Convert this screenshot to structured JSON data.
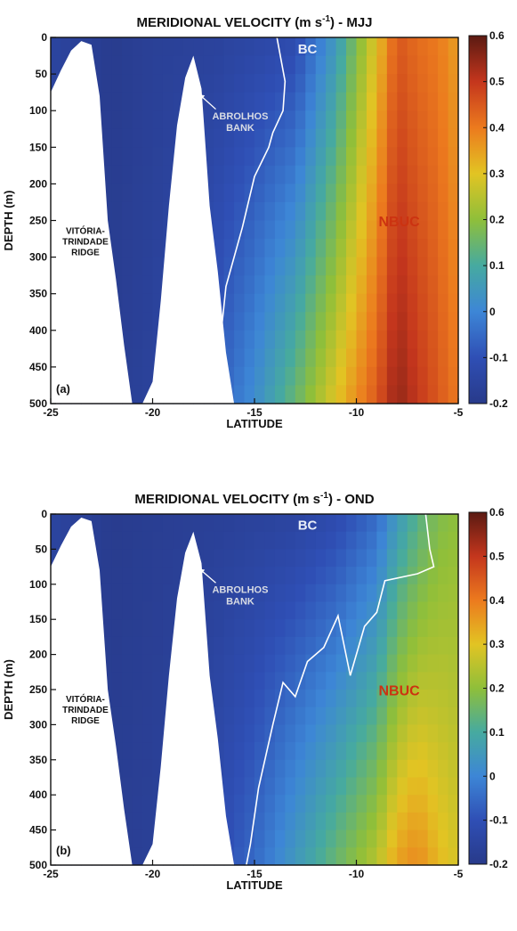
{
  "chart_data": [
    {
      "type": "heatmap",
      "title_main": "MERIDIONAL VELOCITY (m s",
      "title_sup": "-1",
      "title_end": ") - MJJ",
      "xlabel": "LATITUDE",
      "ylabel": "DEPTH (m)",
      "panel_label": "(a)",
      "xlim": [
        -25,
        -5
      ],
      "ylim": [
        0,
        500
      ],
      "x_ticks": [
        "-25",
        "-20",
        "-15",
        "-10",
        "-5"
      ],
      "y_ticks": [
        "0",
        "50",
        "100",
        "150",
        "200",
        "250",
        "300",
        "350",
        "400",
        "450",
        "500"
      ],
      "colorbar_ticks": [
        "0.6",
        "0.5",
        "0.4",
        "0.3",
        "0.2",
        "0.1",
        "0",
        "-0.1",
        "-0.2"
      ],
      "clim": [
        -0.2,
        0.6
      ],
      "annotations": [
        {
          "lines": [
            "BC"
          ],
          "color": "#e8eef8"
        },
        {
          "lines": [
            "ABROLHOS",
            "BANK"
          ],
          "color": "#d9dce4"
        },
        {
          "lines": [
            "NBUC"
          ],
          "color": "#cc3311"
        },
        {
          "lines": [
            "VITÓRIA-",
            "TRINDADE",
            "RIDGE"
          ],
          "color": "#111111"
        }
      ],
      "topography_depth": [
        {
          "lat": -25.0,
          "depth": 75
        },
        {
          "lat": -24.5,
          "depth": 45
        },
        {
          "lat": -24.0,
          "depth": 18
        },
        {
          "lat": -23.5,
          "depth": 5
        },
        {
          "lat": -23.0,
          "depth": 10
        },
        {
          "lat": -22.6,
          "depth": 80
        },
        {
          "lat": -22.2,
          "depth": 250
        },
        {
          "lat": -21.8,
          "depth": 330
        },
        {
          "lat": -21.4,
          "depth": 420
        },
        {
          "lat": -21.0,
          "depth": 500
        },
        {
          "lat": -20.5,
          "depth": 500
        },
        {
          "lat": -20.0,
          "depth": 470
        },
        {
          "lat": -19.6,
          "depth": 360
        },
        {
          "lat": -19.2,
          "depth": 230
        },
        {
          "lat": -18.8,
          "depth": 120
        },
        {
          "lat": -18.4,
          "depth": 55
        },
        {
          "lat": -18.0,
          "depth": 25
        },
        {
          "lat": -17.6,
          "depth": 70
        },
        {
          "lat": -17.2,
          "depth": 230
        },
        {
          "lat": -16.8,
          "depth": 320
        },
        {
          "lat": -16.4,
          "depth": 430
        },
        {
          "lat": -16.0,
          "depth": 500
        }
      ],
      "velocity_profile": [
        {
          "lat": -25,
          "surface": -0.15,
          "deep": -0.15
        },
        {
          "lat": -22,
          "surface": -0.19,
          "deep": -0.18
        },
        {
          "lat": -20,
          "surface": -0.17,
          "deep": -0.16
        },
        {
          "lat": -17,
          "surface": -0.16,
          "deep": -0.08
        },
        {
          "lat": -15,
          "surface": -0.14,
          "deep": 0.02
        },
        {
          "lat": -13,
          "surface": -0.12,
          "deep": 0.15
        },
        {
          "lat": -11,
          "surface": 0.05,
          "deep": 0.3
        },
        {
          "lat": -9,
          "surface": 0.3,
          "deep": 0.45
        },
        {
          "lat": -8,
          "surface": 0.45,
          "deep": 0.55
        },
        {
          "lat": -7,
          "surface": 0.42,
          "deep": 0.5
        },
        {
          "lat": -6,
          "surface": 0.4,
          "deep": 0.45
        },
        {
          "lat": -5,
          "surface": 0.35,
          "deep": 0.4
        }
      ],
      "zero_contour": [
        {
          "lat": -13.9,
          "depth": 0
        },
        {
          "lat": -13.5,
          "depth": 60
        },
        {
          "lat": -13.6,
          "depth": 100
        },
        {
          "lat": -14.1,
          "depth": 130
        },
        {
          "lat": -14.3,
          "depth": 150
        },
        {
          "lat": -15.0,
          "depth": 190
        },
        {
          "lat": -15.6,
          "depth": 260
        },
        {
          "lat": -16.4,
          "depth": 340
        },
        {
          "lat": -16.7,
          "depth": 420
        },
        {
          "lat": -16.2,
          "depth": 500
        }
      ]
    },
    {
      "type": "heatmap",
      "title_main": "MERIDIONAL VELOCITY (m s",
      "title_sup": "-1",
      "title_end": ") - OND",
      "xlabel": "LATITUDE",
      "ylabel": "DEPTH (m)",
      "panel_label": "(b)",
      "xlim": [
        -25,
        -5
      ],
      "ylim": [
        0,
        500
      ],
      "x_ticks": [
        "-25",
        "-20",
        "-15",
        "-10",
        "-5"
      ],
      "y_ticks": [
        "0",
        "50",
        "100",
        "150",
        "200",
        "250",
        "300",
        "350",
        "400",
        "450",
        "500"
      ],
      "colorbar_ticks": [
        "0.6",
        "0.5",
        "0.4",
        "0.3",
        "0.2",
        "0.1",
        "0",
        "-0.1",
        "-0.2"
      ],
      "clim": [
        -0.2,
        0.6
      ],
      "annotations": [
        {
          "lines": [
            "BC"
          ],
          "color": "#e8eef8"
        },
        {
          "lines": [
            "ABROLHOS",
            "BANK"
          ],
          "color": "#d9dce4"
        },
        {
          "lines": [
            "NBUC"
          ],
          "color": "#cc3311"
        },
        {
          "lines": [
            "VITÓRIA-",
            "TRINDADE",
            "RIDGE"
          ],
          "color": "#111111"
        }
      ],
      "topography_depth": [
        {
          "lat": -25.0,
          "depth": 75
        },
        {
          "lat": -24.5,
          "depth": 45
        },
        {
          "lat": -24.0,
          "depth": 18
        },
        {
          "lat": -23.5,
          "depth": 5
        },
        {
          "lat": -23.0,
          "depth": 10
        },
        {
          "lat": -22.6,
          "depth": 80
        },
        {
          "lat": -22.2,
          "depth": 250
        },
        {
          "lat": -21.8,
          "depth": 330
        },
        {
          "lat": -21.4,
          "depth": 420
        },
        {
          "lat": -21.0,
          "depth": 500
        },
        {
          "lat": -20.5,
          "depth": 500
        },
        {
          "lat": -20.0,
          "depth": 470
        },
        {
          "lat": -19.6,
          "depth": 360
        },
        {
          "lat": -19.2,
          "depth": 230
        },
        {
          "lat": -18.8,
          "depth": 120
        },
        {
          "lat": -18.4,
          "depth": 55
        },
        {
          "lat": -18.0,
          "depth": 25
        },
        {
          "lat": -17.6,
          "depth": 70
        },
        {
          "lat": -17.2,
          "depth": 230
        },
        {
          "lat": -16.8,
          "depth": 320
        },
        {
          "lat": -16.4,
          "depth": 430
        },
        {
          "lat": -16.0,
          "depth": 500
        }
      ],
      "velocity_profile": [
        {
          "lat": -25,
          "surface": -0.15,
          "deep": -0.15
        },
        {
          "lat": -22,
          "surface": -0.19,
          "deep": -0.18
        },
        {
          "lat": -20,
          "surface": -0.18,
          "deep": -0.17
        },
        {
          "lat": -17,
          "surface": -0.17,
          "deep": -0.12
        },
        {
          "lat": -15,
          "surface": -0.16,
          "deep": -0.05
        },
        {
          "lat": -13,
          "surface": -0.15,
          "deep": 0.05
        },
        {
          "lat": -11,
          "surface": -0.12,
          "deep": 0.15
        },
        {
          "lat": -9,
          "surface": -0.05,
          "deep": 0.25
        },
        {
          "lat": -8,
          "surface": 0.05,
          "deep": 0.35
        },
        {
          "lat": -7,
          "surface": 0.12,
          "deep": 0.38
        },
        {
          "lat": -6,
          "surface": 0.18,
          "deep": 0.32
        },
        {
          "lat": -5,
          "surface": 0.2,
          "deep": 0.28
        }
      ],
      "zero_contour": [
        {
          "lat": -6.6,
          "depth": 0
        },
        {
          "lat": -6.4,
          "depth": 50
        },
        {
          "lat": -6.2,
          "depth": 75
        },
        {
          "lat": -7.0,
          "depth": 85
        },
        {
          "lat": -8.6,
          "depth": 95
        },
        {
          "lat": -9.0,
          "depth": 140
        },
        {
          "lat": -9.6,
          "depth": 160
        },
        {
          "lat": -10.3,
          "depth": 230
        },
        {
          "lat": -10.9,
          "depth": 145
        },
        {
          "lat": -11.6,
          "depth": 190
        },
        {
          "lat": -12.4,
          "depth": 210
        },
        {
          "lat": -13.0,
          "depth": 260
        },
        {
          "lat": -13.6,
          "depth": 240
        },
        {
          "lat": -14.1,
          "depth": 300
        },
        {
          "lat": -14.8,
          "depth": 390
        },
        {
          "lat": -15.2,
          "depth": 470
        },
        {
          "lat": -15.4,
          "depth": 500
        }
      ]
    }
  ]
}
